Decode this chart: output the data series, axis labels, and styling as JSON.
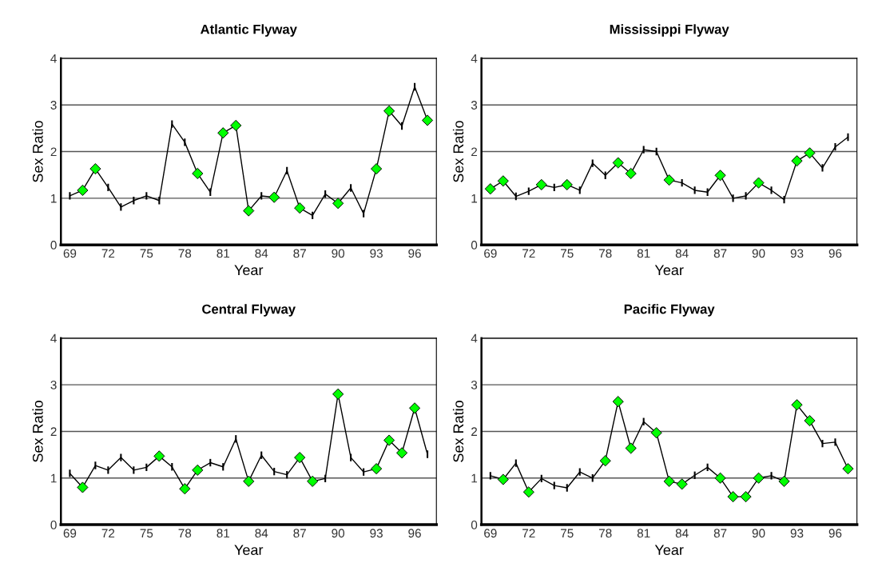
{
  "chart_data": [
    {
      "type": "line",
      "title": "Atlantic Flyway",
      "xlabel": "Year",
      "ylabel": "Sex Ratio",
      "ylim": [
        0,
        4
      ],
      "yticks": [
        0,
        1,
        2,
        3,
        4
      ],
      "grid": "y",
      "legend": false,
      "categories": [
        "69",
        null,
        null,
        "72",
        null,
        null,
        "75",
        null,
        null,
        "78",
        null,
        null,
        "81",
        null,
        null,
        "84",
        null,
        null,
        "87",
        null,
        null,
        "90",
        null,
        null,
        "93",
        null,
        null,
        "96",
        null
      ],
      "series": [
        {
          "color": "#000000",
          "marker": "none",
          "values": [
            1.05,
            1.17,
            1.63,
            1.23,
            0.81,
            0.95,
            1.05,
            0.95,
            2.59,
            2.2,
            1.53,
            1.13,
            2.4,
            2.56,
            0.73,
            1.05,
            1.02,
            1.59,
            0.79,
            0.63,
            1.09,
            0.89,
            1.22,
            0.67,
            1.63,
            2.87,
            2.55,
            3.39,
            2.67
          ],
          "errors": [
            0.08,
            null,
            null,
            0.08,
            0.08,
            0.08,
            0.08,
            0.08,
            0.08,
            0.08,
            null,
            0.08,
            null,
            null,
            null,
            0.08,
            null,
            0.08,
            null,
            0.08,
            0.08,
            null,
            0.08,
            0.08,
            null,
            null,
            0.08,
            0.08,
            null
          ]
        },
        {
          "type": "scatter",
          "color": "#00ff00",
          "marker": "diamond",
          "values": [
            null,
            1.17,
            1.63,
            null,
            null,
            null,
            null,
            null,
            null,
            null,
            1.53,
            null,
            2.4,
            2.56,
            0.73,
            null,
            1.02,
            null,
            0.79,
            null,
            null,
            0.89,
            null,
            null,
            1.63,
            2.87,
            null,
            null,
            2.67
          ]
        }
      ]
    },
    {
      "type": "line",
      "title": "Mississippi Flyway",
      "xlabel": "Year",
      "ylabel": "Sex Ratio",
      "ylim": [
        0,
        4
      ],
      "yticks": [
        0,
        1,
        2,
        3,
        4
      ],
      "grid": "y",
      "legend": false,
      "categories": [
        "69",
        null,
        null,
        "72",
        null,
        null,
        "75",
        null,
        null,
        "78",
        null,
        null,
        "81",
        null,
        null,
        "84",
        null,
        null,
        "87",
        null,
        null,
        "90",
        null,
        null,
        "93",
        null,
        null,
        "96",
        null
      ],
      "series": [
        {
          "color": "#000000",
          "marker": "none",
          "values": [
            1.2,
            1.37,
            1.04,
            1.15,
            1.29,
            1.23,
            1.29,
            1.17,
            1.75,
            1.49,
            1.76,
            1.53,
            2.04,
            2.0,
            1.39,
            1.33,
            1.17,
            1.13,
            1.49,
            1.0,
            1.05,
            1.33,
            1.17,
            0.97,
            1.8,
            1.97,
            1.65,
            2.1,
            2.31
          ],
          "errors": [
            null,
            null,
            0.08,
            0.08,
            null,
            0.08,
            null,
            0.08,
            0.08,
            0.08,
            null,
            null,
            0.08,
            0.08,
            null,
            0.08,
            0.08,
            0.08,
            null,
            0.08,
            0.08,
            null,
            0.08,
            0.08,
            null,
            null,
            0.08,
            0.08,
            0.08
          ]
        },
        {
          "type": "scatter",
          "color": "#00ff00",
          "marker": "diamond",
          "values": [
            1.2,
            1.37,
            null,
            null,
            1.29,
            null,
            1.29,
            null,
            null,
            null,
            1.76,
            1.53,
            null,
            null,
            1.39,
            null,
            null,
            null,
            1.49,
            null,
            null,
            1.33,
            null,
            null,
            1.8,
            1.97,
            null,
            null,
            null
          ]
        }
      ]
    },
    {
      "type": "line",
      "title": "Central Flyway",
      "xlabel": "Year",
      "ylabel": "Sex Ratio",
      "ylim": [
        0,
        4
      ],
      "yticks": [
        0,
        1,
        2,
        3,
        4
      ],
      "grid": "y",
      "legend": false,
      "categories": [
        "69",
        null,
        null,
        "72",
        null,
        null,
        "75",
        null,
        null,
        "78",
        null,
        null,
        "81",
        null,
        null,
        "84",
        null,
        null,
        "87",
        null,
        null,
        "90",
        null,
        null,
        "93",
        null,
        null,
        "96",
        null
      ],
      "series": [
        {
          "color": "#000000",
          "marker": "none",
          "values": [
            1.1,
            0.8,
            1.27,
            1.17,
            1.44,
            1.17,
            1.23,
            1.47,
            1.24,
            0.77,
            1.17,
            1.33,
            1.24,
            1.84,
            0.93,
            1.49,
            1.14,
            1.07,
            1.44,
            0.93,
            0.99,
            2.8,
            1.44,
            1.13,
            1.2,
            1.81,
            1.54,
            2.5,
            1.51
          ],
          "errors": [
            0.08,
            null,
            0.08,
            0.08,
            0.08,
            0.08,
            0.08,
            null,
            0.08,
            null,
            null,
            0.08,
            0.08,
            0.08,
            null,
            0.08,
            0.08,
            0.08,
            null,
            null,
            0.08,
            null,
            0.08,
            0.08,
            null,
            null,
            null,
            null,
            0.08
          ]
        },
        {
          "type": "scatter",
          "color": "#00ff00",
          "marker": "diamond",
          "values": [
            null,
            0.8,
            null,
            null,
            null,
            null,
            null,
            1.47,
            null,
            0.77,
            1.17,
            null,
            null,
            null,
            0.93,
            null,
            null,
            null,
            1.44,
            0.93,
            null,
            2.8,
            null,
            null,
            1.2,
            1.81,
            1.54,
            2.5,
            null
          ]
        }
      ]
    },
    {
      "type": "line",
      "title": "Pacific Flyway",
      "xlabel": "Year",
      "ylabel": "Sex Ratio",
      "ylim": [
        0,
        4
      ],
      "yticks": [
        0,
        1,
        2,
        3,
        4
      ],
      "grid": "y",
      "legend": false,
      "categories": [
        "69",
        null,
        null,
        "72",
        null,
        null,
        "75",
        null,
        null,
        "78",
        null,
        null,
        "81",
        null,
        null,
        "84",
        null,
        null,
        "87",
        null,
        null,
        "90",
        null,
        null,
        "93",
        null,
        null,
        "96",
        null
      ],
      "series": [
        {
          "color": "#000000",
          "marker": "none",
          "values": [
            1.05,
            0.97,
            1.32,
            0.7,
            0.99,
            0.84,
            0.79,
            1.13,
            1.0,
            1.37,
            2.64,
            1.64,
            2.21,
            1.97,
            0.93,
            0.87,
            1.06,
            1.23,
            1.0,
            0.6,
            0.6,
            1.0,
            1.05,
            0.93,
            2.57,
            2.23,
            1.74,
            1.77,
            1.2
          ],
          "errors": [
            0.08,
            null,
            0.08,
            null,
            0.08,
            0.08,
            0.08,
            0.08,
            0.08,
            null,
            null,
            null,
            0.08,
            null,
            null,
            null,
            0.08,
            0.08,
            null,
            null,
            null,
            null,
            0.08,
            null,
            null,
            null,
            0.08,
            0.08,
            null
          ]
        },
        {
          "type": "scatter",
          "color": "#00ff00",
          "marker": "diamond",
          "values": [
            null,
            0.97,
            null,
            0.7,
            null,
            null,
            null,
            null,
            null,
            1.37,
            2.64,
            1.64,
            null,
            1.97,
            0.93,
            0.87,
            null,
            null,
            1.0,
            0.6,
            0.6,
            1.0,
            null,
            0.93,
            2.57,
            2.23,
            null,
            null,
            1.2
          ]
        }
      ]
    }
  ]
}
